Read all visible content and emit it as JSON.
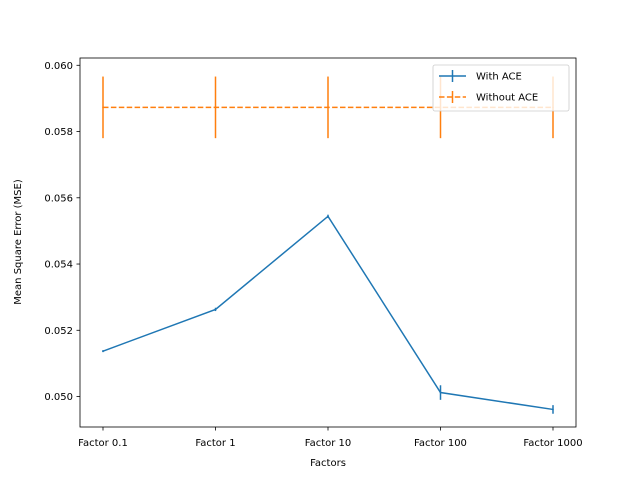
{
  "chart_data": {
    "type": "line",
    "title": "",
    "xlabel": "Factors",
    "ylabel": "Mean Square Error (MSE)",
    "categories": [
      "Factor 0.1",
      "Factor 1",
      "Factor 10",
      "Factor 100",
      "Factor 1000"
    ],
    "ylim": [
      0.04908,
      0.06022
    ],
    "yticks": [
      0.05,
      0.052,
      0.054,
      0.056,
      0.058,
      0.06
    ],
    "ytick_labels": [
      "0.050",
      "0.052",
      "0.054",
      "0.056",
      "0.058",
      "0.060"
    ],
    "grid": false,
    "legend_position": "top-right",
    "series": [
      {
        "name": "With ACE",
        "color": "#1f77b4",
        "linestyle": "solid",
        "values": [
          0.05137,
          0.05263,
          0.05544,
          0.05012,
          0.04961
        ],
        "errors": [
          3e-05,
          5e-05,
          5e-05,
          0.00022,
          0.00013
        ]
      },
      {
        "name": "Without ACE",
        "color": "#ff7f0e",
        "linestyle": "dashed",
        "values": [
          0.05873,
          0.05873,
          0.05873,
          0.05873,
          0.05873
        ],
        "errors": [
          0.00093,
          0.00093,
          0.00093,
          0.00093,
          0.00093
        ]
      }
    ]
  }
}
